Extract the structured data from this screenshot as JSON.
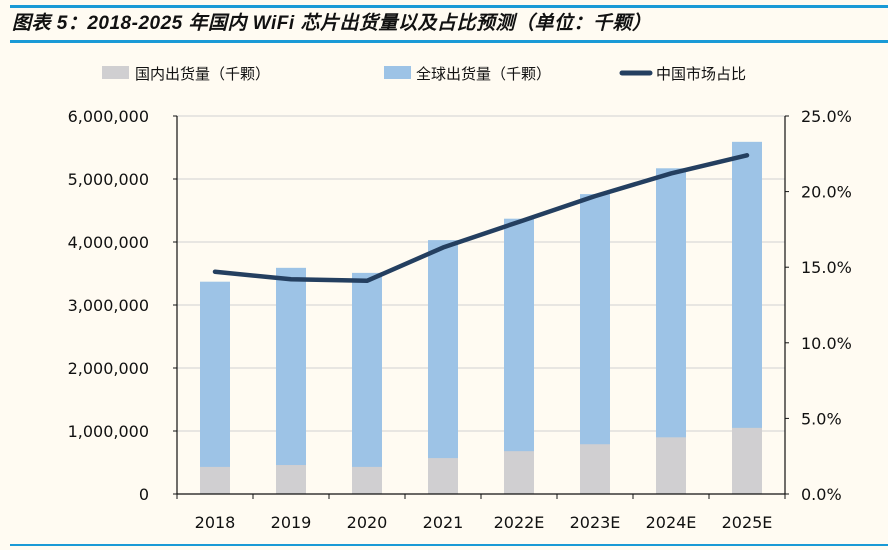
{
  "title": "图表 5：2018-2025 年国内 WiFi 芯片出货量以及占比预测（单位：千颗）",
  "chart_data": {
    "type": "bar+line",
    "title": "图表 5：2018-2025 年国内 WiFi 芯片出货量以及占比预测（单位：千颗）",
    "categories": [
      "2018",
      "2019",
      "2020",
      "2021",
      "2022E",
      "2023E",
      "2024E",
      "2025E"
    ],
    "series": [
      {
        "name": "国内出货量（千颗）",
        "type": "bar",
        "axis": "left",
        "color": "#d0cfd1",
        "values": [
          430000,
          460000,
          430000,
          570000,
          680000,
          790000,
          900000,
          1050000
        ]
      },
      {
        "name": "全球出货量（千颗）",
        "type": "bar",
        "axis": "left",
        "color": "#9dc3e6",
        "values": [
          3370000,
          3590000,
          3510000,
          4030000,
          4370000,
          4760000,
          5170000,
          5590000
        ]
      },
      {
        "name": "中国市场占比",
        "type": "line",
        "axis": "right",
        "color": "#243f60",
        "values": [
          14.7,
          14.2,
          14.1,
          16.3,
          18.0,
          19.7,
          21.2,
          22.4
        ]
      }
    ],
    "left_axis": {
      "ylim": [
        0,
        6000000
      ],
      "ticks": [
        "0",
        "1,000,000",
        "2,000,000",
        "3,000,000",
        "4,000,000",
        "5,000,000",
        "6,000,000"
      ]
    },
    "right_axis": {
      "ylim": [
        0,
        25
      ],
      "ticks": [
        "0.0%",
        "5.0%",
        "10.0%",
        "15.0%",
        "20.0%",
        "25.0%"
      ]
    },
    "grid": true,
    "legend": "top"
  }
}
